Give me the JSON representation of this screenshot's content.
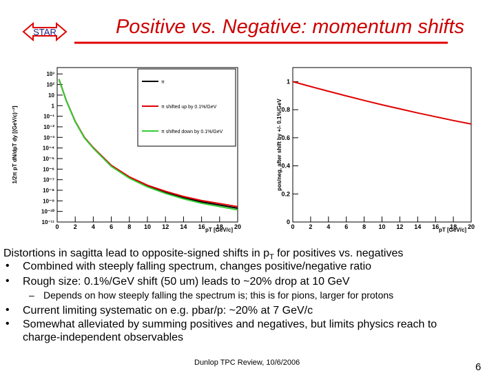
{
  "logo": "STAR",
  "title": "Positive vs. Negative: momentum shifts",
  "chart_data": [
    {
      "type": "line",
      "xlabel": "pT [GeV/c]",
      "ylabel": "1/2π pT dN/dpT dy [(GeV/c)⁻²]",
      "log_y": true,
      "grid": false,
      "legend": "upper right",
      "x": [
        0.2,
        1,
        2,
        3,
        4,
        6,
        8,
        10,
        12,
        14,
        16,
        18,
        20
      ],
      "xlim": [
        0,
        20
      ],
      "xticks": [
        0,
        2,
        4,
        6,
        8,
        10,
        12,
        14,
        16,
        18,
        20
      ],
      "ylim": [
        1e-11,
        4000
      ],
      "yticks": [
        {
          "value": 1e-11,
          "label": "10⁻¹¹"
        },
        {
          "value": 1e-10,
          "label": "10⁻¹⁰"
        },
        {
          "value": 1e-09,
          "label": "10⁻⁹"
        },
        {
          "value": 1e-08,
          "label": "10⁻⁸"
        },
        {
          "value": 1e-07,
          "label": "10⁻⁷"
        },
        {
          "value": 1e-06,
          "label": "10⁻⁶"
        },
        {
          "value": 1e-05,
          "label": "10⁻⁵"
        },
        {
          "value": 0.0001,
          "label": "10⁻⁴"
        },
        {
          "value": 0.001,
          "label": "10⁻³"
        },
        {
          "value": 0.01,
          "label": "10⁻²"
        },
        {
          "value": 0.1,
          "label": "10⁻¹"
        },
        1,
        10,
        {
          "value": 100,
          "label": "10²"
        },
        {
          "value": 1000,
          "label": "10³"
        }
      ],
      "series": [
        {
          "name": "π",
          "color": "#000000",
          "values": [
            316,
            3.16,
            0.0316,
            0.001,
            0.0001,
            2e-06,
            1.6e-07,
            2.5e-08,
            6.3e-09,
            2e-09,
            7.9e-10,
            4e-10,
            2e-10
          ]
        },
        {
          "name": "π shifted up by 0.1%/GeV",
          "color": "#e00000",
          "values": [
            316,
            3.19,
            0.0329,
            0.00106,
            0.000108,
            2.24e-06,
            1.87e-07,
            3e-08,
            7.9e-09,
            2.6e-09,
            1.07e-09,
            5.6e-10,
            2.86e-10
          ]
        },
        {
          "name": "π shifted down by 0.1%/GeV",
          "color": "#33cc33",
          "values": [
            316,
            3.13,
            0.0304,
            0.00094,
            9.3e-05,
            1.79e-06,
            1.37e-07,
            2.08e-08,
            5e-09,
            1.54e-09,
            5.9e-10,
            2.86e-10,
            1.4e-10
          ]
        }
      ]
    },
    {
      "type": "line",
      "xlabel": "pT [GeV/c]",
      "ylabel": "pos/neg, after shift by +/- 0.1%/GeV",
      "log_y": false,
      "grid": false,
      "x": [
        0,
        2,
        4,
        6,
        8,
        10,
        12,
        14,
        16,
        18,
        20
      ],
      "xlim": [
        0,
        20
      ],
      "xticks": [
        0,
        2,
        4,
        6,
        8,
        10,
        12,
        14,
        16,
        18,
        20
      ],
      "ylim": [
        0,
        1.1
      ],
      "yticks": [
        0,
        0.2,
        0.4,
        0.6,
        0.8,
        1
      ],
      "color": "#e00000",
      "values": [
        1,
        0.965,
        0.931,
        0.898,
        0.866,
        0.835,
        0.806,
        0.777,
        0.75,
        0.723,
        0.698
      ]
    }
  ],
  "body": {
    "intro": {
      "pre": "Distortions in sagitta lead to opposite-signed shifts in p",
      "sub": "T",
      "post": " for positives vs. negatives"
    },
    "bullets": [
      "Combined with steeply falling spectrum, changes positive/negative ratio",
      "Rough size: 0.1%/GeV shift (50 um) leads to ~20% drop at 10 GeV"
    ],
    "sub_bullet": "Depends on how steeply falling the spectrum is; this is for pions, larger for protons",
    "bullets2": [
      "Current limiting systematic on e.g. pbar/p: ~20% at 7 GeV/c",
      "Somewhat alleviated by summing positives and negatives, but limits physics reach to charge-independent observables"
    ]
  },
  "footer": "Dunlop TPC Review, 10/6/2006",
  "page": 6
}
